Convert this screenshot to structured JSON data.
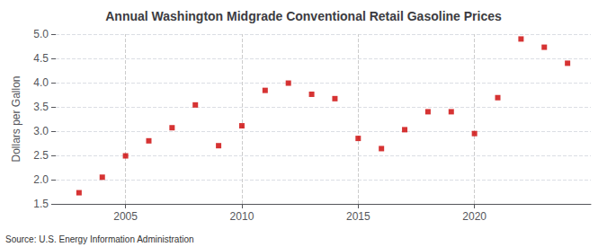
{
  "chart_data": {
    "type": "scatter",
    "title": "Annual Washington Midgrade Conventional Retail Gasoline Prices",
    "ylabel": "Dollars per Gallon",
    "source": "Source: U.S. Energy Information Administration",
    "x": [
      2003,
      2004,
      2005,
      2006,
      2007,
      2008,
      2009,
      2010,
      2011,
      2012,
      2013,
      2014,
      2015,
      2016,
      2017,
      2018,
      2019,
      2020,
      2021,
      2022,
      2023,
      2024
    ],
    "values": [
      1.73,
      2.05,
      2.49,
      2.8,
      3.07,
      3.54,
      2.7,
      3.11,
      3.84,
      3.99,
      3.76,
      3.67,
      2.85,
      2.64,
      3.03,
      3.4,
      3.4,
      2.95,
      3.69,
      4.9,
      4.73,
      4.4
    ],
    "color": "#cc0000",
    "marker": "square",
    "xlim": [
      2002.0,
      2025.0
    ],
    "xticks": [
      2005,
      2010,
      2015,
      2020
    ],
    "ylim": [
      1.5,
      5.0
    ],
    "yticks": [
      1.5,
      {
        "value": 2.0,
        "label": "2.0"
      },
      2.5,
      {
        "value": 3.0,
        "label": "3.0"
      },
      3.5,
      {
        "value": 4.0,
        "label": "4.0"
      },
      4.5,
      {
        "value": 5.0,
        "label": "5.0"
      }
    ],
    "grid": true
  }
}
